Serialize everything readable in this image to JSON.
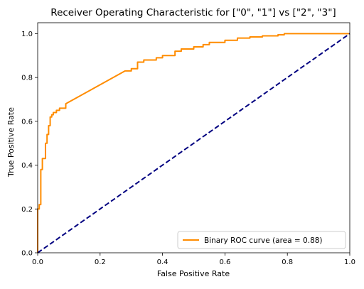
{
  "chart_data": {
    "type": "line",
    "title": "Receiver Operating Characteristic for [\"0\", \"1\"] vs [\"2\", \"3\"]",
    "xlabel": "False Positive Rate",
    "ylabel": "True Positive Rate",
    "xlim": [
      0.0,
      1.0
    ],
    "ylim": [
      0.0,
      1.05
    ],
    "xticks": [
      0.0,
      0.2,
      0.4,
      0.6,
      0.8,
      1.0
    ],
    "xtick_labels": [
      "0.0",
      "0.2",
      "0.4",
      "0.6",
      "0.8",
      "1.0"
    ],
    "yticks": [
      0.0,
      0.2,
      0.4,
      0.6,
      0.8,
      1.0
    ],
    "ytick_labels": [
      "0.0",
      "0.2",
      "0.4",
      "0.6",
      "0.8",
      "1.0"
    ],
    "grid": false,
    "legend_position": "lower-right",
    "series": [
      {
        "name": "Binary ROC curve (area = 0.88)",
        "color": "#ff8c00",
        "style": "solid",
        "x": [
          0.0,
          0.0,
          0.005,
          0.005,
          0.01,
          0.01,
          0.015,
          0.015,
          0.025,
          0.025,
          0.03,
          0.03,
          0.035,
          0.035,
          0.04,
          0.04,
          0.045,
          0.045,
          0.05,
          0.05,
          0.06,
          0.06,
          0.07,
          0.07,
          0.09,
          0.09,
          0.28,
          0.3,
          0.3,
          0.32,
          0.32,
          0.34,
          0.34,
          0.38,
          0.38,
          0.4,
          0.4,
          0.44,
          0.44,
          0.46,
          0.46,
          0.5,
          0.5,
          0.53,
          0.53,
          0.55,
          0.55,
          0.6,
          0.6,
          0.64,
          0.64,
          0.68,
          0.68,
          0.72,
          0.72,
          0.77,
          0.77,
          0.79,
          0.79,
          0.96,
          0.96,
          0.97,
          0.97,
          1.0
        ],
        "y": [
          0.0,
          0.2,
          0.2,
          0.22,
          0.22,
          0.38,
          0.38,
          0.43,
          0.43,
          0.5,
          0.5,
          0.54,
          0.54,
          0.58,
          0.58,
          0.62,
          0.62,
          0.63,
          0.63,
          0.64,
          0.64,
          0.65,
          0.65,
          0.66,
          0.66,
          0.68,
          0.83,
          0.83,
          0.84,
          0.84,
          0.87,
          0.87,
          0.88,
          0.88,
          0.89,
          0.89,
          0.9,
          0.9,
          0.92,
          0.92,
          0.93,
          0.93,
          0.94,
          0.94,
          0.95,
          0.95,
          0.96,
          0.96,
          0.97,
          0.97,
          0.98,
          0.98,
          0.985,
          0.985,
          0.99,
          0.99,
          0.995,
          0.995,
          1.0,
          1.0,
          1.0,
          1.0,
          1.0,
          1.0
        ]
      },
      {
        "name": "",
        "color": "#000080",
        "style": "dashed",
        "x": [
          0.0,
          1.0
        ],
        "y": [
          0.0,
          1.0
        ]
      }
    ]
  }
}
